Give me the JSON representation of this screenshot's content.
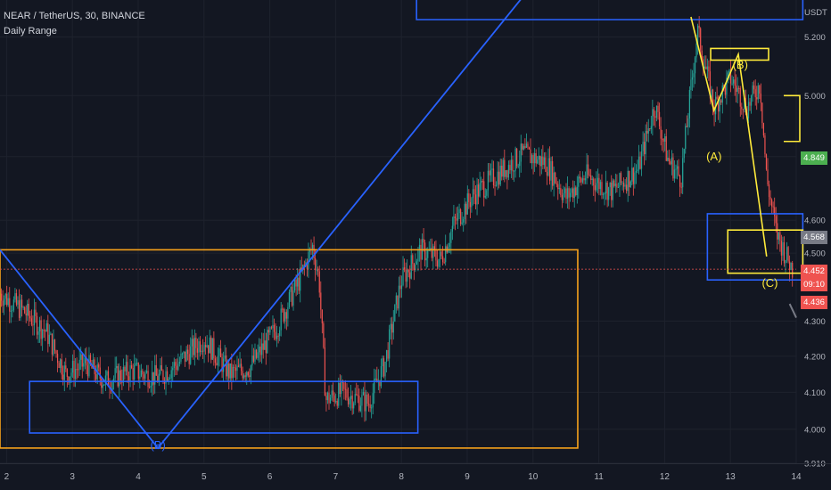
{
  "header": {
    "symbol_line": "NEAR / TetherUS, 30, BINANCE",
    "indicator": "Daily Range"
  },
  "price_axis": {
    "unit": "USDT",
    "ticks": [
      "5.200",
      "5.000",
      "4.800",
      "4.600",
      "4.500",
      "4.300",
      "4.200",
      "4.100",
      "4.000",
      "3.910"
    ]
  },
  "time_axis": {
    "ticks": [
      "2",
      "3",
      "4",
      "5",
      "6",
      "7",
      "8",
      "9",
      "10",
      "11",
      "12",
      "13",
      "14"
    ]
  },
  "badges": {
    "range_high": "4.849",
    "range_mid": "4.568",
    "last_price": "4.452",
    "countdown": "09:10",
    "ask": "4.436"
  },
  "wave_labels": {
    "a": "(A)",
    "b": "(B)",
    "c": "(C)",
    "b_low": "(B)"
  },
  "colors": {
    "background": "#131722",
    "up": "#26a69a",
    "down": "#ef5350",
    "orange": "#f7a21b",
    "blue": "#2962ff",
    "yellow": "#ffeb3b",
    "green_badge": "#4caf50",
    "gray_badge": "#787b86"
  },
  "chart_data": {
    "type": "candlestick",
    "x_range": [
      1.9,
      14.0
    ],
    "y_range": [
      3.91,
      5.33
    ],
    "y_scale": "log",
    "close_path": [
      [
        1.9,
        4.38
      ],
      [
        2.25,
        4.33
      ],
      [
        2.6,
        4.27
      ],
      [
        2.9,
        4.15
      ],
      [
        3.2,
        4.18
      ],
      [
        3.5,
        4.13
      ],
      [
        3.9,
        4.16
      ],
      [
        4.3,
        4.14
      ],
      [
        4.6,
        4.18
      ],
      [
        5.0,
        4.25
      ],
      [
        5.4,
        4.15
      ],
      [
        5.7,
        4.17
      ],
      [
        6.1,
        4.28
      ],
      [
        6.45,
        4.42
      ],
      [
        6.65,
        4.52
      ],
      [
        6.75,
        4.42
      ],
      [
        6.85,
        4.08
      ],
      [
        7.1,
        4.1
      ],
      [
        7.5,
        4.07
      ],
      [
        7.75,
        4.18
      ],
      [
        8.0,
        4.42
      ],
      [
        8.3,
        4.51
      ],
      [
        8.6,
        4.48
      ],
      [
        8.8,
        4.59
      ],
      [
        9.1,
        4.68
      ],
      [
        9.5,
        4.75
      ],
      [
        9.85,
        4.81
      ],
      [
        10.2,
        4.78
      ],
      [
        10.5,
        4.67
      ],
      [
        10.8,
        4.74
      ],
      [
        11.2,
        4.69
      ],
      [
        11.6,
        4.76
      ],
      [
        11.85,
        4.97
      ],
      [
        12.05,
        4.79
      ],
      [
        12.25,
        4.73
      ],
      [
        12.5,
        5.22
      ],
      [
        12.75,
        4.96
      ],
      [
        13.0,
        5.06
      ],
      [
        13.25,
        4.96
      ],
      [
        13.45,
        5.04
      ],
      [
        13.55,
        4.73
      ],
      [
        13.7,
        4.56
      ],
      [
        13.85,
        4.49
      ],
      [
        13.95,
        4.45
      ]
    ],
    "annotations": {
      "orange_box": {
        "x0": 1.9,
        "x1": 10.68,
        "y0": 3.95,
        "y1": 4.51
      },
      "blue_box_low": {
        "x0": 2.35,
        "x1": 8.25,
        "y0": 3.99,
        "y1": 4.13
      },
      "blue_box_right": {
        "x0": 12.65,
        "x1": 14.1,
        "y0": 4.42,
        "y1": 4.62
      },
      "yellow_box_right": {
        "x0": 12.96,
        "x1": 14.1,
        "y0": 4.44,
        "y1": 4.57
      },
      "yellow_box_b": {
        "x0": 12.7,
        "x1": 13.58,
        "y0": 5.12,
        "y1": 5.16
      },
      "blue_box_top": {
        "x0": 8.23,
        "x1": 14.1,
        "y1": 5.6
      },
      "dotted_last_price": 4.452,
      "daily_range_bracket": {
        "y0": 4.849,
        "y1": 5.0
      }
    }
  }
}
